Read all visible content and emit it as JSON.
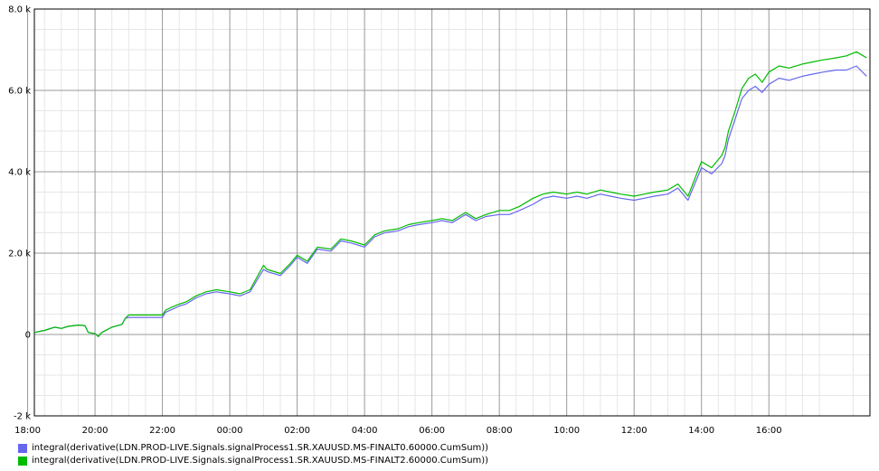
{
  "chart_data": {
    "type": "line",
    "title": "",
    "xlabel": "",
    "ylabel": "",
    "x_ticks": [
      "20:00",
      "22:00",
      "00:00",
      "02:00",
      "04:00",
      "06:00",
      "08:00",
      "10:00",
      "12:00",
      "14:00",
      "16:00",
      "18:00"
    ],
    "y_ticks": [
      "-2 k",
      "0",
      "2.0 k",
      "4.0 k",
      "6.0 k",
      "8.0 k"
    ],
    "xlim": [
      18.2,
      43.0
    ],
    "ylim": [
      -2000,
      8000
    ],
    "grid": true,
    "legend_position": "bottom-left",
    "x": [
      18.2,
      18.5,
      18.8,
      19.0,
      19.2,
      19.5,
      19.7,
      19.8,
      20.0,
      20.1,
      20.2,
      20.5,
      20.8,
      20.9,
      21.0,
      21.5,
      22.0,
      22.1,
      22.3,
      22.5,
      22.7,
      23.0,
      23.3,
      23.6,
      24.0,
      24.3,
      24.6,
      25.0,
      25.1,
      25.5,
      25.8,
      26.0,
      26.3,
      26.6,
      27.0,
      27.3,
      27.6,
      28.0,
      28.3,
      28.6,
      29.0,
      29.3,
      29.6,
      30.0,
      30.3,
      30.6,
      31.0,
      31.3,
      31.6,
      32.0,
      32.3,
      32.6,
      33.0,
      33.3,
      33.6,
      34.0,
      34.3,
      34.6,
      35.0,
      35.3,
      35.6,
      36.0,
      36.3,
      36.6,
      37.0,
      37.3,
      37.6,
      38.0,
      38.3,
      38.6,
      38.7,
      38.8,
      39.0,
      39.2,
      39.4,
      39.6,
      39.8,
      40.0,
      40.3,
      40.6,
      41.0,
      41.3,
      41.6,
      42.0,
      42.3,
      42.6,
      42.9
    ],
    "series": [
      {
        "name": "integral(derivative(LDN.PROD-LIVE.Signals.signalProcess1.SR.XAUUSD.MS-FINALT0.60000.CumSum))",
        "color": "#6666ee",
        "values": [
          50,
          100,
          180,
          150,
          200,
          230,
          220,
          50,
          20,
          -50,
          50,
          180,
          250,
          400,
          420,
          420,
          420,
          550,
          620,
          700,
          750,
          900,
          1000,
          1050,
          1000,
          950,
          1050,
          1600,
          1550,
          1450,
          1700,
          1900,
          1750,
          2100,
          2050,
          2300,
          2250,
          2150,
          2400,
          2500,
          2550,
          2650,
          2700,
          2750,
          2800,
          2750,
          2950,
          2800,
          2900,
          2950,
          2950,
          3050,
          3200,
          3350,
          3400,
          3350,
          3400,
          3350,
          3450,
          3400,
          3350,
          3300,
          3350,
          3400,
          3450,
          3600,
          3300,
          4100,
          3950,
          4200,
          4400,
          4800,
          5300,
          5800,
          6000,
          6100,
          5950,
          6150,
          6300,
          6250,
          6350,
          6400,
          6450,
          6500,
          6500,
          6600,
          6350
        ]
      },
      {
        "name": "integral(derivative(LDN.PROD-LIVE.Signals.signalProcess1.SR.XAUUSD.MS-FINALT2.60000.CumSum))",
        "color": "#00bb00",
        "values": [
          50,
          100,
          180,
          150,
          200,
          230,
          220,
          50,
          20,
          -50,
          50,
          180,
          250,
          400,
          480,
          480,
          480,
          600,
          680,
          750,
          800,
          950,
          1050,
          1100,
          1050,
          1000,
          1100,
          1700,
          1600,
          1500,
          1750,
          1950,
          1800,
          2150,
          2100,
          2350,
          2300,
          2200,
          2450,
          2550,
          2600,
          2700,
          2750,
          2800,
          2850,
          2800,
          3000,
          2850,
          2950,
          3050,
          3050,
          3150,
          3350,
          3450,
          3500,
          3450,
          3500,
          3450,
          3550,
          3500,
          3450,
          3400,
          3450,
          3500,
          3550,
          3700,
          3400,
          4250,
          4100,
          4400,
          4600,
          5000,
          5500,
          6050,
          6300,
          6400,
          6200,
          6450,
          6600,
          6550,
          6650,
          6700,
          6750,
          6800,
          6850,
          6950,
          6800
        ]
      }
    ]
  }
}
